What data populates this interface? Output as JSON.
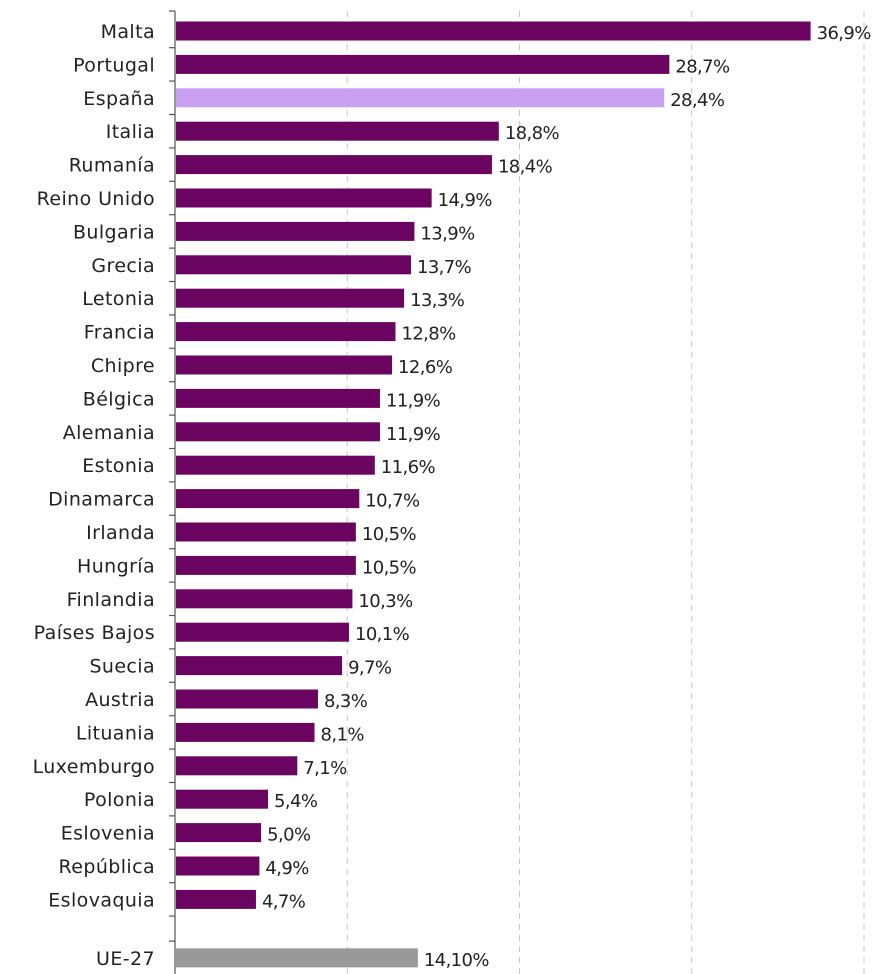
{
  "chart_data": {
    "type": "bar",
    "orientation": "horizontal",
    "categories": [
      "Malta",
      "Portugal",
      "España",
      "Italia",
      "Rumanía",
      "Reino Unido",
      "Bulgaria",
      "Grecia",
      "Letonia",
      "Francia",
      "Chipre",
      "Bélgica",
      "Alemania",
      "Estonia",
      "Dinamarca",
      "Irlanda",
      "Hungría",
      "Finlandia",
      "Países Bajos",
      "Suecia",
      "Austria",
      "Lituania",
      "Luxemburgo",
      "Polonia",
      "Eslovenia",
      "República",
      "Eslovaquia",
      "UE-27"
    ],
    "values": [
      36.9,
      28.7,
      28.4,
      18.8,
      18.4,
      14.9,
      13.9,
      13.7,
      13.3,
      12.8,
      12.6,
      11.9,
      11.9,
      11.6,
      10.7,
      10.5,
      10.5,
      10.3,
      10.1,
      9.7,
      8.3,
      8.1,
      7.1,
      5.4,
      5.0,
      4.9,
      4.7,
      14.1
    ],
    "value_labels": [
      "36,9%",
      "28,7%",
      "28,4%",
      "18,8%",
      "18,4%",
      "14,9%",
      "13,9%",
      "13,7%",
      "13,3%",
      "12,8%",
      "12,6%",
      "11,9%",
      "11,9%",
      "11,6%",
      "10,7%",
      "10,5%",
      "10,5%",
      "10,3%",
      "10,1%",
      "9,7%",
      "8,3%",
      "8,1%",
      "7,1%",
      "5,4%",
      "5,0%",
      "4,9%",
      "4,7%",
      "14,10%"
    ],
    "xlim": [
      0,
      40
    ],
    "grid_values": [
      10,
      20,
      30,
      40
    ],
    "grid": "vertical dashed",
    "colors": {
      "default": "#6b0461",
      "highlight": "#c9a0f2",
      "aggregate": "#999999",
      "grid": "#c8c8c8",
      "axis": "#555555"
    },
    "highlight_category": "España",
    "aggregate_category": "UE-27",
    "title": "",
    "xlabel": "",
    "ylabel": ""
  }
}
